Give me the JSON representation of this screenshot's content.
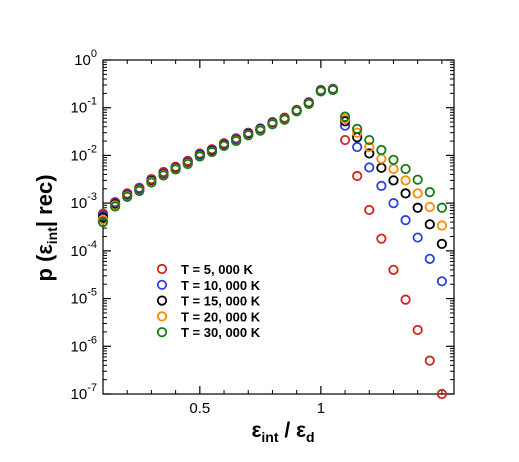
{
  "chart_data": {
    "type": "scatter",
    "xscale": "linear",
    "yscale": "log",
    "xlim": [
      0.1,
      1.55
    ],
    "ylim": [
      1e-07,
      1
    ],
    "grid": false,
    "legend_position": "lower-left",
    "xtick_labels": [
      {
        "v": 0.5,
        "t": "0.5"
      },
      {
        "v": 1.0,
        "t": "1"
      }
    ],
    "ytick_labels": [
      {
        "v": 1.0,
        "b": "10",
        "e": "0"
      },
      {
        "v": 0.1,
        "b": "10",
        "e": "-1"
      },
      {
        "v": 0.01,
        "b": "10",
        "e": "-2"
      },
      {
        "v": 0.001,
        "b": "10",
        "e": "-3"
      },
      {
        "v": 0.0001,
        "b": "10",
        "e": "-4"
      },
      {
        "v": 1e-05,
        "b": "10",
        "e": "-5"
      },
      {
        "v": 1e-06,
        "b": "10",
        "e": "-6"
      },
      {
        "v": 1e-07,
        "b": "10",
        "e": "-7"
      }
    ],
    "xlabel": {
      "eps": "ε",
      "sub1": "int",
      "sep": " / ",
      "eps2": "ε",
      "sub2": "d"
    },
    "ylabel": {
      "pre": "p (",
      "eps": "ε",
      "sub": "int",
      "post": "| rec)"
    },
    "series": [
      {
        "name": "T = 5, 000 K",
        "color": "#d62020",
        "x": [
          0.1,
          0.15,
          0.2,
          0.25,
          0.3,
          0.35,
          0.4,
          0.45,
          0.5,
          0.55,
          0.6,
          0.65,
          0.7,
          0.75,
          0.8,
          0.85,
          0.9,
          0.95,
          1.0,
          1.05,
          1.1,
          1.15,
          1.2,
          1.25,
          1.3,
          1.35,
          1.4,
          1.45,
          1.5
        ],
        "y": [
          0.0006,
          0.00105,
          0.0016,
          0.0021,
          0.0032,
          0.0045,
          0.0058,
          0.0077,
          0.011,
          0.0135,
          0.018,
          0.023,
          0.03,
          0.037,
          0.05,
          0.062,
          0.09,
          0.13,
          0.235,
          0.25,
          0.021,
          0.0037,
          0.00072,
          0.00018,
          4e-05,
          9.5e-06,
          2.2e-06,
          5e-07,
          1e-07
        ]
      },
      {
        "name": "T = 10, 000 K",
        "color": "#2f3fe0",
        "x": [
          0.1,
          0.15,
          0.2,
          0.25,
          0.3,
          0.35,
          0.4,
          0.45,
          0.5,
          0.55,
          0.6,
          0.65,
          0.7,
          0.75,
          0.8,
          0.85,
          0.9,
          0.95,
          1.0,
          1.05,
          1.1,
          1.15,
          1.2,
          1.25,
          1.3,
          1.35,
          1.4,
          1.45,
          1.5
        ],
        "y": [
          0.00055,
          0.001,
          0.0015,
          0.002,
          0.003,
          0.0042,
          0.0055,
          0.0073,
          0.0105,
          0.013,
          0.017,
          0.022,
          0.029,
          0.036,
          0.048,
          0.06,
          0.088,
          0.128,
          0.23,
          0.245,
          0.042,
          0.015,
          0.0056,
          0.0023,
          0.001,
          0.00044,
          0.00019,
          6.8e-05,
          2.3e-05
        ]
      },
      {
        "name": "T = 15, 000 K",
        "color": "#000000",
        "x": [
          0.1,
          0.15,
          0.2,
          0.25,
          0.3,
          0.35,
          0.4,
          0.45,
          0.5,
          0.55,
          0.6,
          0.65,
          0.7,
          0.75,
          0.8,
          0.85,
          0.9,
          0.95,
          1.0,
          1.05,
          1.1,
          1.15,
          1.2,
          1.25,
          1.3,
          1.35,
          1.4,
          1.45,
          1.5
        ],
        "y": [
          0.0005,
          0.00095,
          0.00145,
          0.0019,
          0.0029,
          0.004,
          0.0053,
          0.007,
          0.01,
          0.0125,
          0.0165,
          0.021,
          0.028,
          0.035,
          0.047,
          0.058,
          0.086,
          0.125,
          0.225,
          0.24,
          0.052,
          0.024,
          0.011,
          0.0055,
          0.003,
          0.0016,
          0.0008,
          0.00036,
          0.00014
        ]
      },
      {
        "name": "T = 20, 000 K",
        "color": "#ff8c00",
        "x": [
          0.1,
          0.15,
          0.2,
          0.25,
          0.3,
          0.35,
          0.4,
          0.45,
          0.5,
          0.55,
          0.6,
          0.65,
          0.7,
          0.75,
          0.8,
          0.85,
          0.9,
          0.95,
          1.0,
          1.05,
          1.1,
          1.15,
          1.2,
          1.25,
          1.3,
          1.35,
          1.4,
          1.45,
          1.5
        ],
        "y": [
          0.00045,
          0.0009,
          0.0014,
          0.00185,
          0.0028,
          0.0039,
          0.0052,
          0.0068,
          0.0097,
          0.012,
          0.016,
          0.0205,
          0.027,
          0.034,
          0.046,
          0.057,
          0.085,
          0.122,
          0.222,
          0.238,
          0.058,
          0.03,
          0.015,
          0.0085,
          0.0052,
          0.003,
          0.0016,
          0.00083,
          0.00034
        ]
      },
      {
        "name": "T = 30, 000 K",
        "color": "#157a15",
        "x": [
          0.1,
          0.15,
          0.2,
          0.25,
          0.3,
          0.35,
          0.4,
          0.45,
          0.5,
          0.55,
          0.6,
          0.65,
          0.7,
          0.75,
          0.8,
          0.85,
          0.9,
          0.95,
          1.0,
          1.05,
          1.1,
          1.15,
          1.2,
          1.25,
          1.3,
          1.35,
          1.4,
          1.45,
          1.5
        ],
        "y": [
          0.0004,
          0.00085,
          0.00135,
          0.0018,
          0.0027,
          0.0038,
          0.0051,
          0.0066,
          0.0095,
          0.0118,
          0.0158,
          0.02,
          0.0265,
          0.033,
          0.045,
          0.056,
          0.084,
          0.12,
          0.22,
          0.235,
          0.065,
          0.036,
          0.021,
          0.013,
          0.0081,
          0.0052,
          0.0031,
          0.0017,
          0.0008
        ]
      }
    ]
  }
}
